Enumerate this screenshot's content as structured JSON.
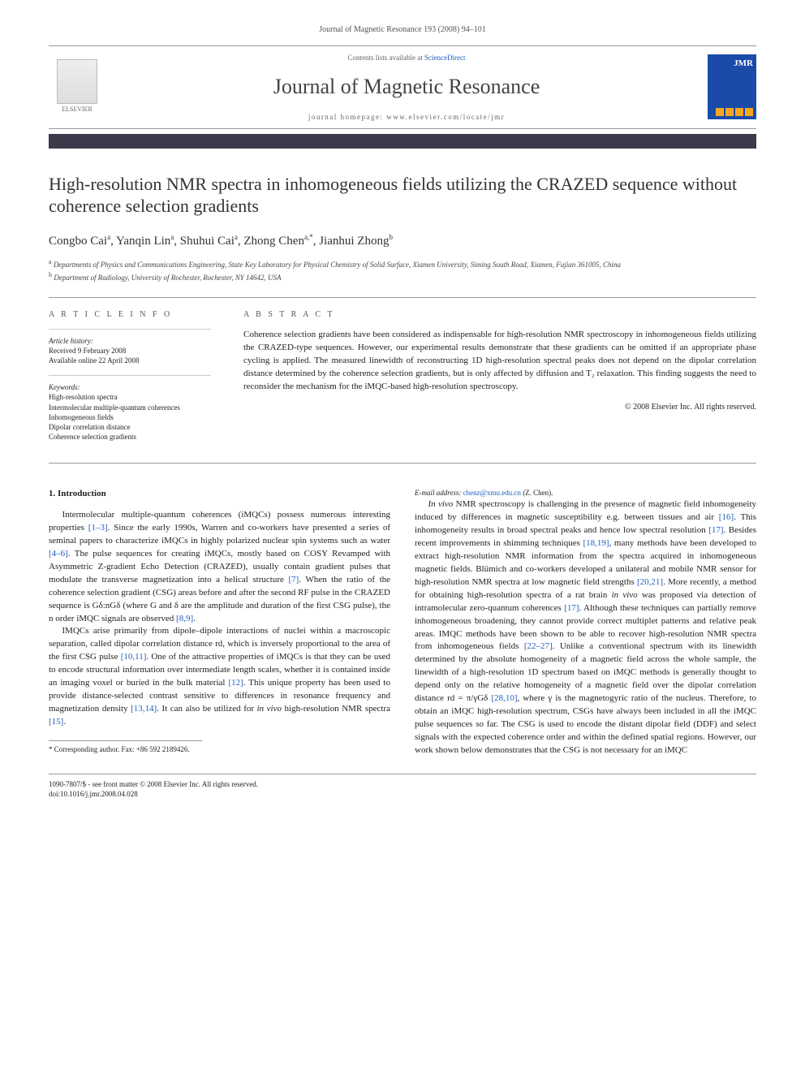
{
  "journal_ref": "Journal of Magnetic Resonance 193 (2008) 94–101",
  "header": {
    "elsevier_label": "ELSEVIER",
    "contents_prefix": "Contents lists available at ",
    "contents_link": "ScienceDirect",
    "journal_name": "Journal of Magnetic Resonance",
    "homepage_prefix": "journal homepage: ",
    "homepage_url": "www.elsevier.com/locate/jmr",
    "cover_abbrev": "JMR"
  },
  "title": "High-resolution NMR spectra in inhomogeneous fields utilizing the CRAZED sequence without coherence selection gradients",
  "authors_html": "Congbo Cai<sup>a</sup>, Yanqin Lin<sup>a</sup>, Shuhui Cai<sup>a</sup>, Zhong Chen<sup>a,*</sup>, Jianhui Zhong<sup>b</sup>",
  "affiliations": [
    {
      "sup": "a",
      "text": "Departments of Physics and Communications Engineering, State Key Laboratory for Physical Chemistry of Solid Surface, Xiamen University, Siming South Road, Xiamen, Fujian 361005, China"
    },
    {
      "sup": "b",
      "text": "Department of Radiology, University of Rochester, Rochester, NY 14642, USA"
    }
  ],
  "article_info": {
    "heading": "A R T I C L E   I N F O",
    "history_label": "Article history:",
    "received": "Received 9 February 2008",
    "available": "Available online 22 April 2008",
    "keywords_label": "Keywords:",
    "keywords": [
      "High-resolution spectra",
      "Intermolecular multiple-quantum coherences",
      "Inhomogeneous fields",
      "Dipolar correlation distance",
      "Coherence selection gradients"
    ]
  },
  "abstract": {
    "heading": "A B S T R A C T",
    "text": "Coherence selection gradients have been considered as indispensable for high-resolution NMR spectroscopy in inhomogeneous fields utilizing the CRAZED-type sequences. However, our experimental results demonstrate that these gradients can be omitted if an appropriate phase cycling is applied. The measured linewidth of reconstructing 1D high-resolution spectral peaks does not depend on the dipolar correlation distance determined by the coherence selection gradients, but is only affected by diffusion and T₂ relaxation. This finding suggests the need to reconsider the mechanism for the iMQC-based high-resolution spectroscopy.",
    "copyright": "© 2008 Elsevier Inc. All rights reserved."
  },
  "body": {
    "section_heading": "1. Introduction",
    "p1": "Intermolecular multiple-quantum coherences (iMQCs) possess numerous interesting properties [1–3]. Since the early 1990s, Warren and co-workers have presented a series of seminal papers to characterize iMQCs in highly polarized nuclear spin systems such as water [4–6]. The pulse sequences for creating iMQCs, mostly based on COSY Revamped with Asymmetric Z-gradient Echo Detection (CRAZED), usually contain gradient pulses that modulate the transverse magnetization into a helical structure [7]. When the ratio of the coherence selection gradient (CSG) areas before and after the second RF pulse in the CRAZED sequence is Gδ:nGδ (where G and δ are the amplitude and duration of the first CSG pulse), the n order iMQC signals are observed [8,9].",
    "p2": "IMQCs arise primarily from dipole–dipole interactions of nuclei within a macroscopic separation, called dipolar correlation distance rd, which is inversely proportional to the area of the first CSG pulse [10,11]. One of the attractive properties of iMQCs is that they can be used to encode structural information over intermediate length scales, whether it is contained inside an imaging voxel or buried in the bulk material [12]. This unique property has been used to provide distance-selected contrast sensitive to differences in resonance frequency and magnetization density [13,14]. It can also be utilized for in vivo high-resolution NMR spectra [15].",
    "p3": "In vivo NMR spectroscopy is challenging in the presence of magnetic field inhomogeneity induced by differences in magnetic susceptibility e.g. between tissues and air [16]. This inhomogeneity results in broad spectral peaks and hence low spectral resolution [17]. Besides recent improvements in shimming techniques [18,19], many methods have been developed to extract high-resolution NMR information from the spectra acquired in inhomogeneous magnetic fields. Blümich and co-workers developed a unilateral and mobile NMR sensor for high-resolution NMR spectra at low magnetic field strengths [20,21]. More recently, a method for obtaining high-resolution spectra of a rat brain in vivo was proposed via detection of intramolecular zero-quantum coherences [17]. Although these techniques can partially remove inhomogeneous broadening, they cannot provide correct multiplet patterns and relative peak areas. IMQC methods have been shown to be able to recover high-resolution NMR spectra from inhomogeneous fields [22–27]. Unlike a conventional spectrum with its linewidth determined by the absolute homogeneity of a magnetic field across the whole sample, the linewidth of a high-resolution 1D spectrum based on iMQC methods is generally thought to depend only on the relative homogeneity of a magnetic field over the dipolar correlation distance rd = π/γGδ [28,10], where γ is the magnetogyric ratio of the nucleus. Therefore, to obtain an iMQC high-resolution spectrum, CSGs have always been included in all the iMQC pulse sequences so far. The CSG is used to encode the distant dipolar field (DDF) and select signals with the expected coherence order and within the defined spatial regions. However, our work shown below demonstrates that the CSG is not necessary for an iMQC"
  },
  "corresponding": {
    "line1": "* Corresponding author. Fax: +86 592 2189426.",
    "line2_label": "E-mail address:",
    "line2_email": "chenz@xmu.edu.cn",
    "line2_name": "(Z. Chen)."
  },
  "footer": {
    "left1": "1090-7807/$ - see front matter © 2008 Elsevier Inc. All rights reserved.",
    "left2": "doi:10.1016/j.jmr.2008.04.028"
  },
  "colors": {
    "link": "#2060c0",
    "darkbar": "#3a3a4a",
    "cover": "#1a4ba8"
  }
}
